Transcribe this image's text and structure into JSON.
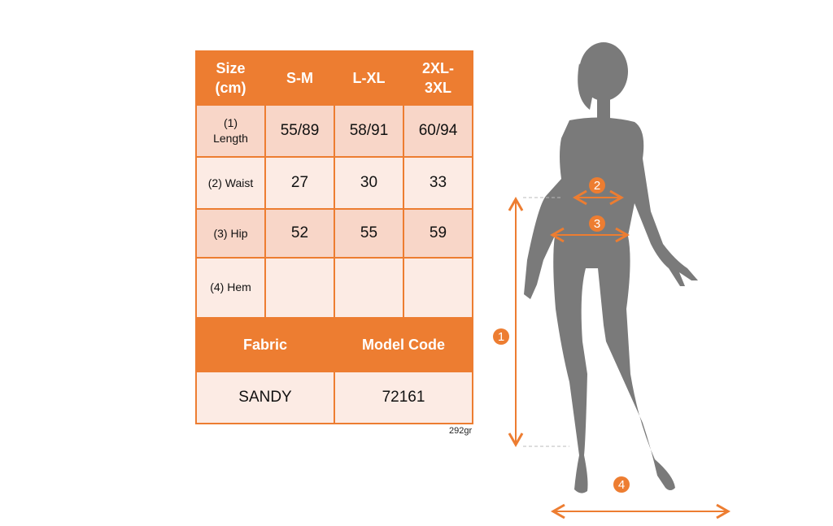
{
  "size_table": {
    "header": [
      "Size (cm)",
      "S-M",
      "L-XL",
      "2XL-3XL"
    ],
    "rows": [
      {
        "label": "(1) Length",
        "values": [
          "55/89",
          "58/91",
          "60/94"
        ]
      },
      {
        "label": "(2) Waist",
        "values": [
          "27",
          "30",
          "33"
        ]
      },
      {
        "label": "(3) Hip",
        "values": [
          "52",
          "55",
          "59"
        ]
      },
      {
        "label": "(4) Hem",
        "values": [
          "",
          "",
          ""
        ]
      }
    ],
    "footer_header": [
      "Fabric",
      "Model Code"
    ],
    "footer_values": [
      "SANDY",
      "72161"
    ]
  },
  "weight": "292gr",
  "diagram": {
    "markers": [
      "1",
      "2",
      "3",
      "4"
    ],
    "accent_color": "#ED7D31",
    "silhouette_color": "#7A7A7A"
  }
}
